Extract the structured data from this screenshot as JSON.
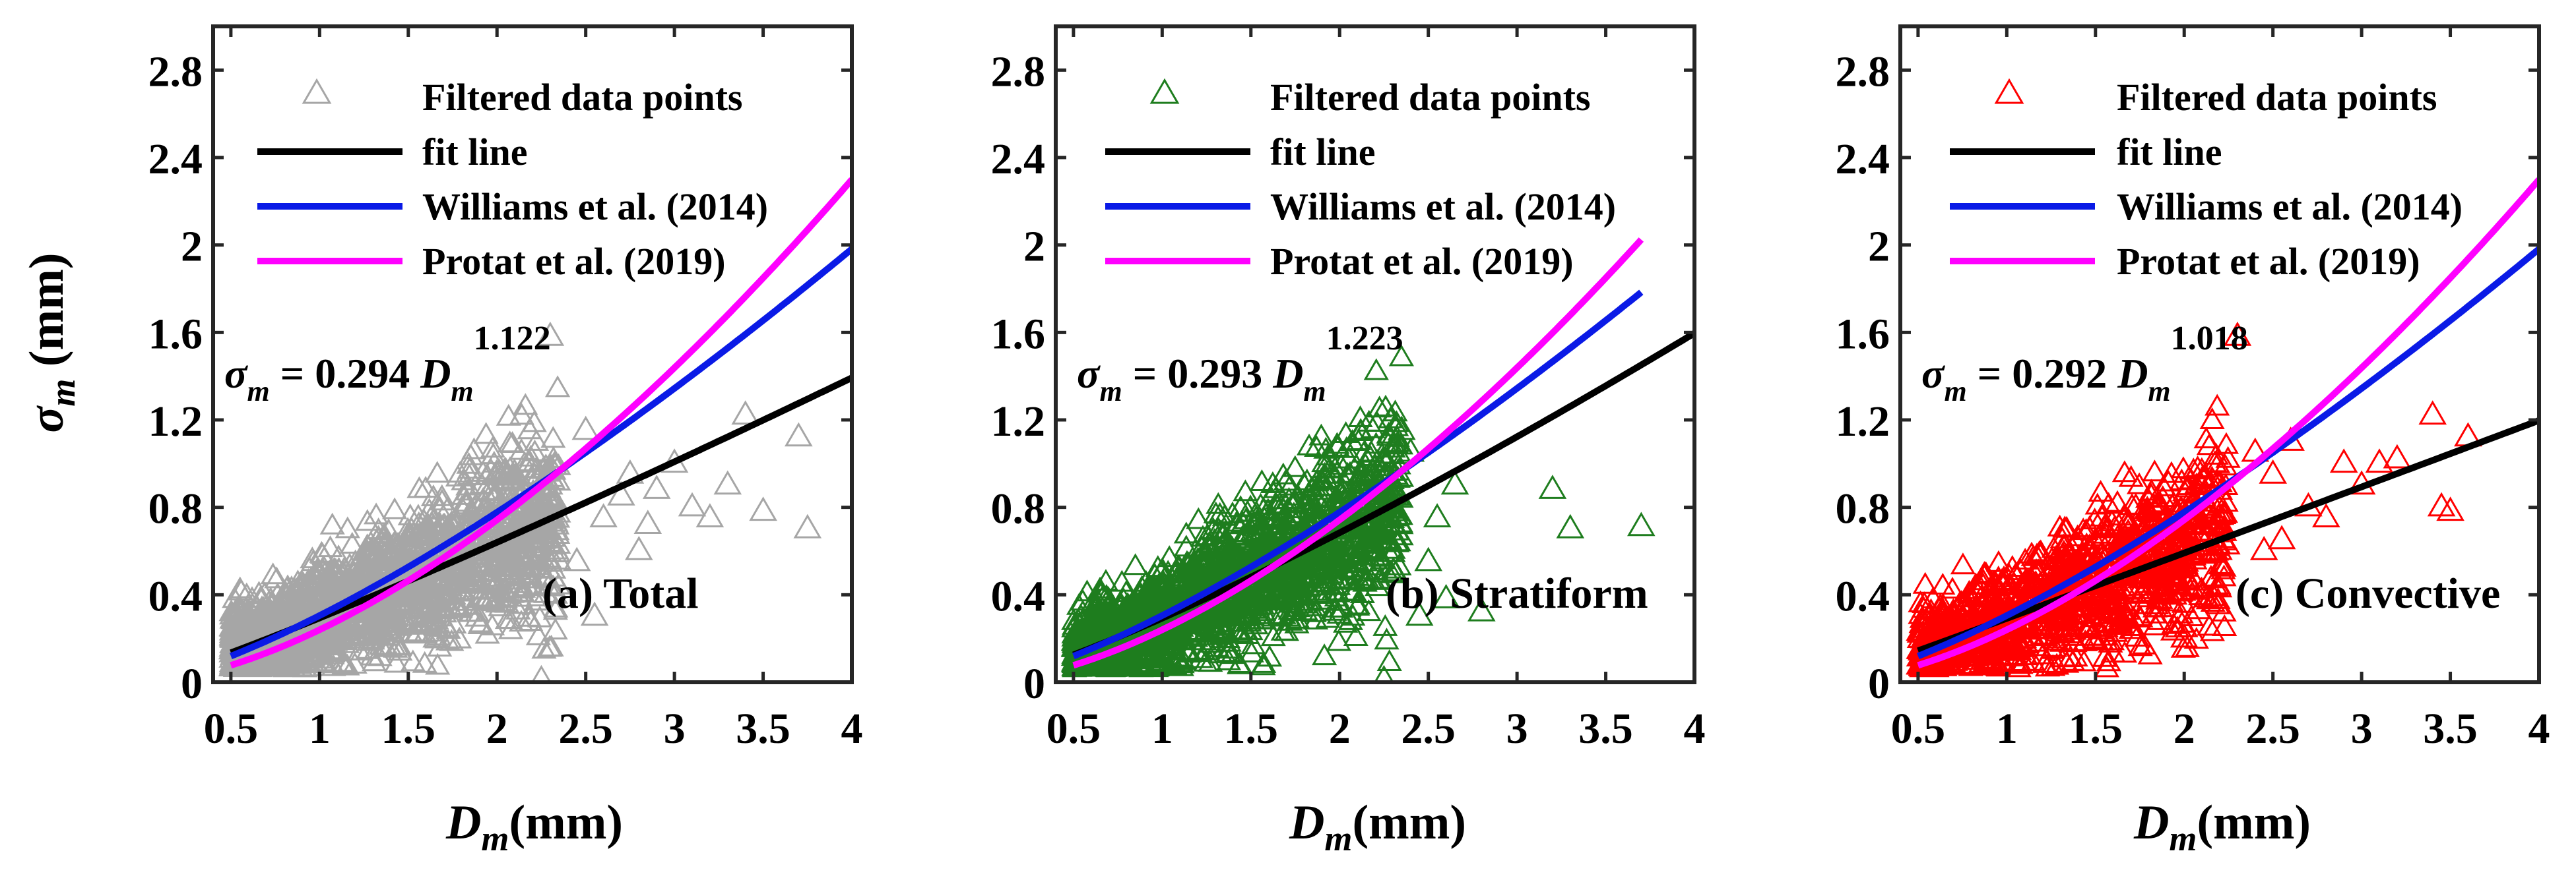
{
  "colors": {
    "fit": "#000000",
    "williams": "#0a1ae6",
    "protat": "#ff00ff",
    "total_points": "#a6a6a6",
    "stratiform_points": "#1e7d1e",
    "convective_points": "#ff0000"
  },
  "legend": {
    "points": "Filtered data points",
    "fit": "fit line",
    "williams": "Williams et al. (2014)",
    "protat": "Protat et al. (2019)"
  },
  "axis_labels": {
    "y": {
      "main": "σ",
      "sub": "m",
      "unit": " (mm)"
    },
    "x": {
      "main": "D",
      "sub": "m",
      "unit": "(mm)"
    }
  },
  "chart_data": [
    {
      "type": "scatter",
      "panel_label": "(a) Total",
      "xlim": [
        0.4,
        4
      ],
      "ylim": [
        0,
        3
      ],
      "xticks": [
        "0.5",
        "1",
        "1.5",
        "2",
        "2.5",
        "3",
        "3.5",
        "4"
      ],
      "yticks": [
        "0",
        "0.4",
        "0.8",
        "1.2",
        "1.6",
        "2",
        "2.4",
        "2.8"
      ],
      "equation": {
        "lhs": "σ",
        "lhs_sub": "m",
        "mid": " = 0.294 ",
        "var": "D",
        "var_sub": "m",
        "exponent": "1.122"
      },
      "fit": {
        "a": 0.294,
        "b": 1.122
      },
      "williams": {
        "a": 0.305,
        "b": 1.35
      },
      "protat": {
        "a": 0.24,
        "b": 1.63
      },
      "outliers": [
        [
          2.25,
          0.01
        ],
        [
          2.45,
          0.55
        ],
        [
          2.6,
          0.75
        ],
        [
          2.7,
          0.85
        ],
        [
          2.8,
          0.6
        ],
        [
          2.9,
          0.88
        ],
        [
          3.0,
          1.0
        ],
        [
          3.1,
          0.8
        ],
        [
          3.2,
          0.75
        ],
        [
          3.4,
          1.22
        ],
        [
          3.5,
          0.78
        ],
        [
          3.7,
          1.12
        ],
        [
          3.75,
          0.7
        ],
        [
          2.3,
          1.58
        ],
        [
          2.5,
          1.15
        ],
        [
          2.55,
          0.3
        ],
        [
          2.75,
          0.95
        ],
        [
          2.85,
          0.72
        ],
        [
          3.3,
          0.9
        ]
      ],
      "bulk_count": 1900,
      "bulk_seed": 11
    },
    {
      "type": "scatter",
      "panel_label": "(b) Stratiform",
      "xlim": [
        0.4,
        4
      ],
      "ylim": [
        0,
        3
      ],
      "xticks": [
        "0.5",
        "1",
        "1.5",
        "2",
        "2.5",
        "3",
        "3.5",
        "4"
      ],
      "yticks": [
        "0",
        "0.4",
        "0.8",
        "1.2",
        "1.6",
        "2",
        "2.4",
        "2.8"
      ],
      "equation": {
        "lhs": "σ",
        "lhs_sub": "m",
        "mid": " = 0.293 ",
        "var": "D",
        "var_sub": "m",
        "exponent": "1.223"
      },
      "fit": {
        "a": 0.293,
        "b": 1.223
      },
      "williams": {
        "a": 0.305,
        "b": 1.35
      },
      "protat": {
        "a": 0.24,
        "b": 1.63
      },
      "xmax_curves": 3.7,
      "outliers": [
        [
          2.25,
          0.01
        ],
        [
          2.4,
          1.05
        ],
        [
          2.5,
          0.55
        ],
        [
          2.6,
          0.38
        ],
        [
          2.65,
          0.9
        ],
        [
          2.8,
          0.32
        ],
        [
          3.2,
          0.88
        ],
        [
          3.3,
          0.7
        ],
        [
          3.7,
          0.71
        ],
        [
          2.35,
          1.15
        ],
        [
          2.55,
          0.75
        ],
        [
          2.45,
          0.3
        ]
      ],
      "bulk_count": 1800,
      "bulk_seed": 23
    },
    {
      "type": "scatter",
      "panel_label": "(c) Convective",
      "xlim": [
        0.4,
        4
      ],
      "ylim": [
        0,
        3
      ],
      "xticks": [
        "0.5",
        "1",
        "1.5",
        "2",
        "2.5",
        "3",
        "3.5",
        "4"
      ],
      "yticks": [
        "0",
        "0.4",
        "0.8",
        "1.2",
        "1.6",
        "2",
        "2.4",
        "2.8"
      ],
      "equation": {
        "lhs": "σ",
        "lhs_sub": "m",
        "mid": " = 0.292 ",
        "var": "D",
        "var_sub": "m",
        "exponent": "1.018"
      },
      "fit": {
        "a": 0.292,
        "b": 1.018
      },
      "williams": {
        "a": 0.305,
        "b": 1.35
      },
      "protat": {
        "a": 0.24,
        "b": 1.63
      },
      "outliers": [
        [
          2.3,
          1.58
        ],
        [
          2.4,
          1.05
        ],
        [
          2.5,
          0.95
        ],
        [
          2.6,
          1.1
        ],
        [
          2.7,
          0.8
        ],
        [
          2.8,
          0.75
        ],
        [
          2.9,
          1.0
        ],
        [
          3.0,
          0.9
        ],
        [
          3.1,
          1.0
        ],
        [
          3.2,
          1.02
        ],
        [
          3.4,
          1.22
        ],
        [
          3.45,
          0.8
        ],
        [
          3.5,
          0.78
        ],
        [
          3.6,
          1.12
        ],
        [
          2.0,
          0.2
        ],
        [
          2.45,
          0.6
        ],
        [
          2.55,
          0.65
        ]
      ],
      "bulk_count": 1200,
      "bulk_seed": 37
    }
  ]
}
